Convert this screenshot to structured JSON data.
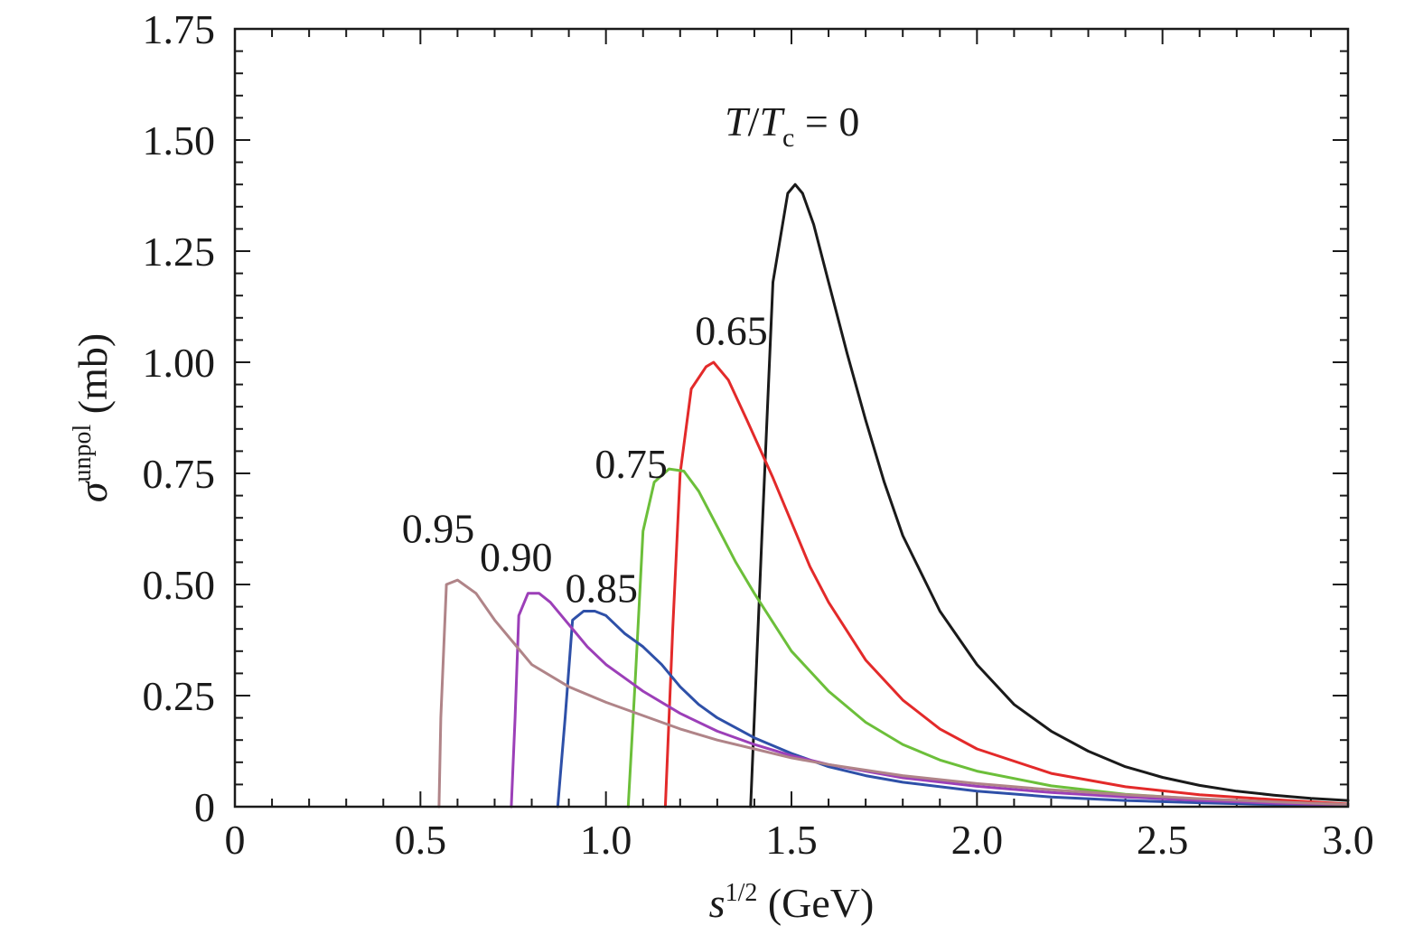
{
  "chart_data": {
    "type": "line",
    "xlabel": {
      "base": "s",
      "sup": "1/2",
      "unit": " (GeV)"
    },
    "ylabel": {
      "base": "σ",
      "sup": "unpol",
      "unit": " (mb)"
    },
    "xlim": [
      0,
      3.0
    ],
    "ylim": [
      0,
      1.75
    ],
    "x_ticks": [
      0,
      0.5,
      1.0,
      1.5,
      2.0,
      2.5,
      3.0
    ],
    "x_tick_labels": [
      "0",
      "0.5",
      "1.0",
      "1.5",
      "2.0",
      "2.5",
      "3.0"
    ],
    "y_ticks": [
      0,
      0.25,
      0.5,
      0.75,
      1.0,
      1.25,
      1.5,
      1.75
    ],
    "y_tick_labels": [
      "0",
      "0.25",
      "0.50",
      "0.75",
      "1.00",
      "1.25",
      "1.50",
      "1.75"
    ],
    "x_minor_step": 0.1,
    "y_minor_step": 0.05,
    "grid": false,
    "series": [
      {
        "name": "0",
        "label_prefix": "T/T",
        "label_sub": "c",
        "label_suffix": " = 0",
        "color": "#1a1a1a",
        "label_x": 1.32,
        "label_y": 1.51,
        "points": [
          [
            1.39,
            0
          ],
          [
            1.42,
            0.6
          ],
          [
            1.45,
            1.18
          ],
          [
            1.49,
            1.38
          ],
          [
            1.51,
            1.4
          ],
          [
            1.53,
            1.38
          ],
          [
            1.56,
            1.31
          ],
          [
            1.6,
            1.18
          ],
          [
            1.65,
            1.02
          ],
          [
            1.7,
            0.87
          ],
          [
            1.75,
            0.73
          ],
          [
            1.8,
            0.61
          ],
          [
            1.9,
            0.44
          ],
          [
            2.0,
            0.32
          ],
          [
            2.1,
            0.23
          ],
          [
            2.2,
            0.17
          ],
          [
            2.3,
            0.125
          ],
          [
            2.4,
            0.09
          ],
          [
            2.5,
            0.066
          ],
          [
            2.6,
            0.048
          ],
          [
            2.7,
            0.035
          ],
          [
            2.8,
            0.026
          ],
          [
            2.9,
            0.019
          ],
          [
            3.0,
            0.014
          ]
        ]
      },
      {
        "name": "0.65",
        "label": "0.65",
        "color": "#e32a2a",
        "label_x": 1.24,
        "label_y": 1.04,
        "points": [
          [
            1.16,
            0
          ],
          [
            1.18,
            0.4
          ],
          [
            1.2,
            0.75
          ],
          [
            1.23,
            0.94
          ],
          [
            1.27,
            0.99
          ],
          [
            1.29,
            1.0
          ],
          [
            1.33,
            0.96
          ],
          [
            1.38,
            0.87
          ],
          [
            1.45,
            0.74
          ],
          [
            1.5,
            0.64
          ],
          [
            1.55,
            0.54
          ],
          [
            1.6,
            0.46
          ],
          [
            1.7,
            0.33
          ],
          [
            1.8,
            0.24
          ],
          [
            1.9,
            0.175
          ],
          [
            2.0,
            0.13
          ],
          [
            2.2,
            0.075
          ],
          [
            2.4,
            0.045
          ],
          [
            2.6,
            0.027
          ],
          [
            2.8,
            0.016
          ],
          [
            3.0,
            0.006
          ]
        ]
      },
      {
        "name": "0.75",
        "label": "0.75",
        "color": "#6cbf3a",
        "label_x": 0.97,
        "label_y": 0.74,
        "points": [
          [
            1.06,
            0
          ],
          [
            1.08,
            0.3
          ],
          [
            1.1,
            0.62
          ],
          [
            1.13,
            0.73
          ],
          [
            1.17,
            0.76
          ],
          [
            1.21,
            0.755
          ],
          [
            1.25,
            0.71
          ],
          [
            1.3,
            0.63
          ],
          [
            1.35,
            0.55
          ],
          [
            1.4,
            0.48
          ],
          [
            1.5,
            0.35
          ],
          [
            1.6,
            0.26
          ],
          [
            1.7,
            0.19
          ],
          [
            1.8,
            0.14
          ],
          [
            1.9,
            0.105
          ],
          [
            2.0,
            0.08
          ],
          [
            2.2,
            0.047
          ],
          [
            2.4,
            0.028
          ],
          [
            2.6,
            0.017
          ],
          [
            2.8,
            0.009
          ],
          [
            3.0,
            0.004
          ]
        ]
      },
      {
        "name": "0.85",
        "label": "0.85",
        "color": "#2e50a8",
        "label_x": 0.89,
        "label_y": 0.46,
        "points": [
          [
            0.87,
            0
          ],
          [
            0.89,
            0.2
          ],
          [
            0.91,
            0.42
          ],
          [
            0.94,
            0.44
          ],
          [
            0.97,
            0.44
          ],
          [
            1.0,
            0.43
          ],
          [
            1.05,
            0.39
          ],
          [
            1.1,
            0.36
          ],
          [
            1.15,
            0.32
          ],
          [
            1.2,
            0.27
          ],
          [
            1.25,
            0.23
          ],
          [
            1.3,
            0.2
          ],
          [
            1.4,
            0.155
          ],
          [
            1.5,
            0.12
          ],
          [
            1.6,
            0.09
          ],
          [
            1.7,
            0.07
          ],
          [
            1.8,
            0.055
          ],
          [
            2.0,
            0.035
          ],
          [
            2.2,
            0.022
          ],
          [
            2.4,
            0.014
          ],
          [
            2.6,
            0.009
          ],
          [
            2.8,
            0.005
          ],
          [
            3.0,
            0.003
          ]
        ]
      },
      {
        "name": "0.90",
        "label": "0.90",
        "color": "#9c3fb8",
        "label_x": 0.66,
        "label_y": 0.53,
        "points": [
          [
            0.745,
            0
          ],
          [
            0.755,
            0.2
          ],
          [
            0.765,
            0.43
          ],
          [
            0.79,
            0.48
          ],
          [
            0.82,
            0.48
          ],
          [
            0.85,
            0.46
          ],
          [
            0.9,
            0.41
          ],
          [
            0.95,
            0.36
          ],
          [
            1.0,
            0.32
          ],
          [
            1.05,
            0.29
          ],
          [
            1.1,
            0.26
          ],
          [
            1.2,
            0.21
          ],
          [
            1.3,
            0.17
          ],
          [
            1.4,
            0.14
          ],
          [
            1.5,
            0.115
          ],
          [
            1.6,
            0.095
          ],
          [
            1.8,
            0.065
          ],
          [
            2.0,
            0.046
          ],
          [
            2.2,
            0.032
          ],
          [
            2.4,
            0.022
          ],
          [
            2.6,
            0.014
          ],
          [
            2.8,
            0.008
          ],
          [
            3.0,
            0.004
          ]
        ]
      },
      {
        "name": "0.95",
        "label": "0.95",
        "color": "#b08488",
        "label_x": 0.45,
        "label_y": 0.595,
        "points": [
          [
            0.55,
            0
          ],
          [
            0.555,
            0.2
          ],
          [
            0.57,
            0.5
          ],
          [
            0.6,
            0.51
          ],
          [
            0.65,
            0.48
          ],
          [
            0.7,
            0.42
          ],
          [
            0.75,
            0.37
          ],
          [
            0.8,
            0.32
          ],
          [
            0.9,
            0.27
          ],
          [
            1.0,
            0.235
          ],
          [
            1.1,
            0.205
          ],
          [
            1.2,
            0.175
          ],
          [
            1.3,
            0.15
          ],
          [
            1.4,
            0.13
          ],
          [
            1.5,
            0.11
          ],
          [
            1.6,
            0.095
          ],
          [
            1.8,
            0.07
          ],
          [
            2.0,
            0.052
          ],
          [
            2.2,
            0.038
          ],
          [
            2.4,
            0.027
          ],
          [
            2.6,
            0.018
          ],
          [
            2.8,
            0.011
          ],
          [
            3.0,
            0.005
          ]
        ]
      }
    ]
  }
}
